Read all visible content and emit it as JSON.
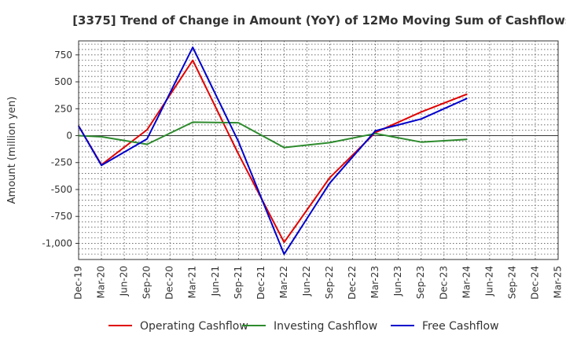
{
  "chart_data": {
    "type": "line",
    "title": "[3375]  Trend of Change in Amount (YoY) of 12Mo Moving Sum of Cashflows",
    "xlabel": "",
    "ylabel": "Amount (million yen)",
    "ylim": [
      -1150,
      880
    ],
    "yticks": [
      750,
      500,
      250,
      0,
      -250,
      -500,
      -750,
      -1000
    ],
    "ytick_labels": [
      "750",
      "500",
      "250",
      "0",
      "-250",
      "-500",
      "-750",
      "-1,000"
    ],
    "categories": [
      "Dec-19",
      "Mar-20",
      "Jun-20",
      "Sep-20",
      "Dec-20",
      "Mar-21",
      "Jun-21",
      "Sep-21",
      "Dec-21",
      "Mar-22",
      "Jun-22",
      "Sep-22",
      "Dec-22",
      "Mar-23",
      "Jun-23",
      "Sep-23",
      "Dec-23",
      "Mar-24",
      "Jun-24",
      "Sep-24",
      "Dec-24",
      "Mar-25"
    ],
    "grid": true,
    "legend_position": "bottom",
    "series": [
      {
        "name": "Operating Cashflow",
        "color": "#e00000",
        "values": [
          90,
          -270,
          null,
          55,
          null,
          700,
          null,
          -170,
          null,
          -990,
          null,
          -390,
          null,
          30,
          null,
          220,
          null,
          385,
          null,
          null,
          null,
          null
        ]
      },
      {
        "name": "Investing Cashflow",
        "color": "#2e8b2e",
        "values": [
          0,
          -10,
          null,
          -80,
          null,
          125,
          null,
          120,
          null,
          -110,
          null,
          -65,
          null,
          20,
          null,
          -60,
          null,
          -35,
          null,
          null,
          null,
          null
        ]
      },
      {
        "name": "Free Cashflow",
        "color": "#0000cc",
        "values": [
          90,
          -275,
          null,
          -30,
          null,
          820,
          null,
          -55,
          null,
          -1100,
          null,
          -440,
          null,
          45,
          null,
          155,
          null,
          345,
          null,
          null,
          null,
          null
        ]
      }
    ]
  }
}
